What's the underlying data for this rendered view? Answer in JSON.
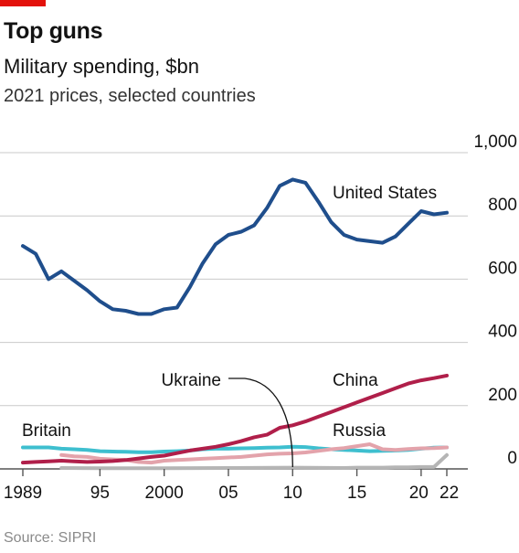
{
  "brand_color": "#e3120b",
  "title": "Top guns",
  "subtitle": "Military spending, $bn",
  "subtitle2": "2021 prices, selected countries",
  "source": "Source: SIPRI",
  "chart_data": {
    "type": "line",
    "ylim": [
      0,
      1000
    ],
    "xlim": [
      1989,
      2022
    ],
    "y_ticks": [
      {
        "value": 0,
        "label": "0"
      },
      {
        "value": 200,
        "label": "200"
      },
      {
        "value": 400,
        "label": "400"
      },
      {
        "value": 600,
        "label": "600"
      },
      {
        "value": 800,
        "label": "800"
      },
      {
        "value": 1000,
        "label": "1,000"
      }
    ],
    "x_ticks": [
      {
        "value": 1989,
        "label": "1989"
      },
      {
        "value": 1995,
        "label": "95"
      },
      {
        "value": 2000,
        "label": "2000"
      },
      {
        "value": 2005,
        "label": "05"
      },
      {
        "value": 2010,
        "label": "10"
      },
      {
        "value": 2015,
        "label": "15"
      },
      {
        "value": 2020,
        "label": "20"
      },
      {
        "value": 2022,
        "label": "22"
      }
    ],
    "grid": true,
    "series": [
      {
        "name": "United States",
        "color": "#1f4e8c",
        "width": 4,
        "x": [
          1989,
          1990,
          1991,
          1992,
          1993,
          1994,
          1995,
          1996,
          1997,
          1998,
          1999,
          2000,
          2001,
          2002,
          2003,
          2004,
          2005,
          2006,
          2007,
          2008,
          2009,
          2010,
          2011,
          2012,
          2013,
          2014,
          2015,
          2016,
          2017,
          2018,
          2019,
          2020,
          2021,
          2022
        ],
        "values": [
          705,
          680,
          600,
          625,
          595,
          565,
          530,
          505,
          500,
          490,
          490,
          505,
          510,
          575,
          650,
          710,
          740,
          750,
          770,
          825,
          895,
          915,
          905,
          845,
          780,
          740,
          725,
          720,
          715,
          735,
          775,
          815,
          805,
          810
        ]
      },
      {
        "name": "China",
        "color": "#b01f4a",
        "width": 4,
        "x": [
          1989,
          1990,
          1991,
          1992,
          1993,
          1994,
          1995,
          1996,
          1997,
          1998,
          1999,
          2000,
          2001,
          2002,
          2003,
          2004,
          2005,
          2006,
          2007,
          2008,
          2009,
          2010,
          2011,
          2012,
          2013,
          2014,
          2015,
          2016,
          2017,
          2018,
          2019,
          2020,
          2021,
          2022
        ],
        "values": [
          20,
          22,
          24,
          26,
          24,
          22,
          23,
          25,
          28,
          33,
          38,
          42,
          50,
          58,
          64,
          70,
          78,
          88,
          100,
          108,
          130,
          138,
          150,
          165,
          180,
          195,
          210,
          225,
          240,
          255,
          270,
          280,
          287,
          295
        ]
      },
      {
        "name": "Britain",
        "color": "#3ebfcf",
        "width": 4,
        "x": [
          1989,
          1990,
          1991,
          1992,
          1993,
          1994,
          1995,
          1996,
          1997,
          1998,
          1999,
          2000,
          2001,
          2002,
          2003,
          2004,
          2005,
          2006,
          2007,
          2008,
          2009,
          2010,
          2011,
          2012,
          2013,
          2014,
          2015,
          2016,
          2017,
          2018,
          2019,
          2020,
          2021,
          2022
        ],
        "values": [
          68,
          68,
          68,
          64,
          62,
          60,
          56,
          55,
          54,
          53,
          53,
          55,
          56,
          58,
          62,
          64,
          64,
          65,
          66,
          67,
          68,
          70,
          69,
          65,
          62,
          60,
          58,
          56,
          57,
          58,
          60,
          64,
          67,
          68
        ]
      },
      {
        "name": "Russia",
        "color": "#e3a3ab",
        "width": 4,
        "x": [
          1992,
          1993,
          1994,
          1995,
          1996,
          1997,
          1998,
          1999,
          2000,
          2001,
          2002,
          2003,
          2004,
          2005,
          2006,
          2007,
          2008,
          2009,
          2010,
          2011,
          2012,
          2013,
          2014,
          2015,
          2016,
          2017,
          2018,
          2019,
          2020,
          2021,
          2022
        ],
        "values": [
          44,
          40,
          38,
          32,
          30,
          28,
          22,
          20,
          26,
          28,
          30,
          32,
          34,
          36,
          38,
          42,
          46,
          48,
          49,
          52,
          57,
          62,
          66,
          72,
          78,
          62,
          60,
          63,
          65,
          66,
          68
        ]
      },
      {
        "name": "Ukraine",
        "color": "#b5b5b5",
        "width": 4,
        "x": [
          1992,
          1995,
          2000,
          2005,
          2010,
          2014,
          2015,
          2016,
          2017,
          2018,
          2019,
          2020,
          2021,
          2022
        ],
        "values": [
          3,
          2,
          2,
          3,
          4,
          3,
          4,
          4,
          4,
          5,
          5,
          6,
          6,
          44
        ]
      }
    ],
    "labels": [
      {
        "text": "United States"
      },
      {
        "text": "Ukraine"
      },
      {
        "text": "China"
      },
      {
        "text": "Britain"
      },
      {
        "text": "Russia"
      }
    ]
  }
}
